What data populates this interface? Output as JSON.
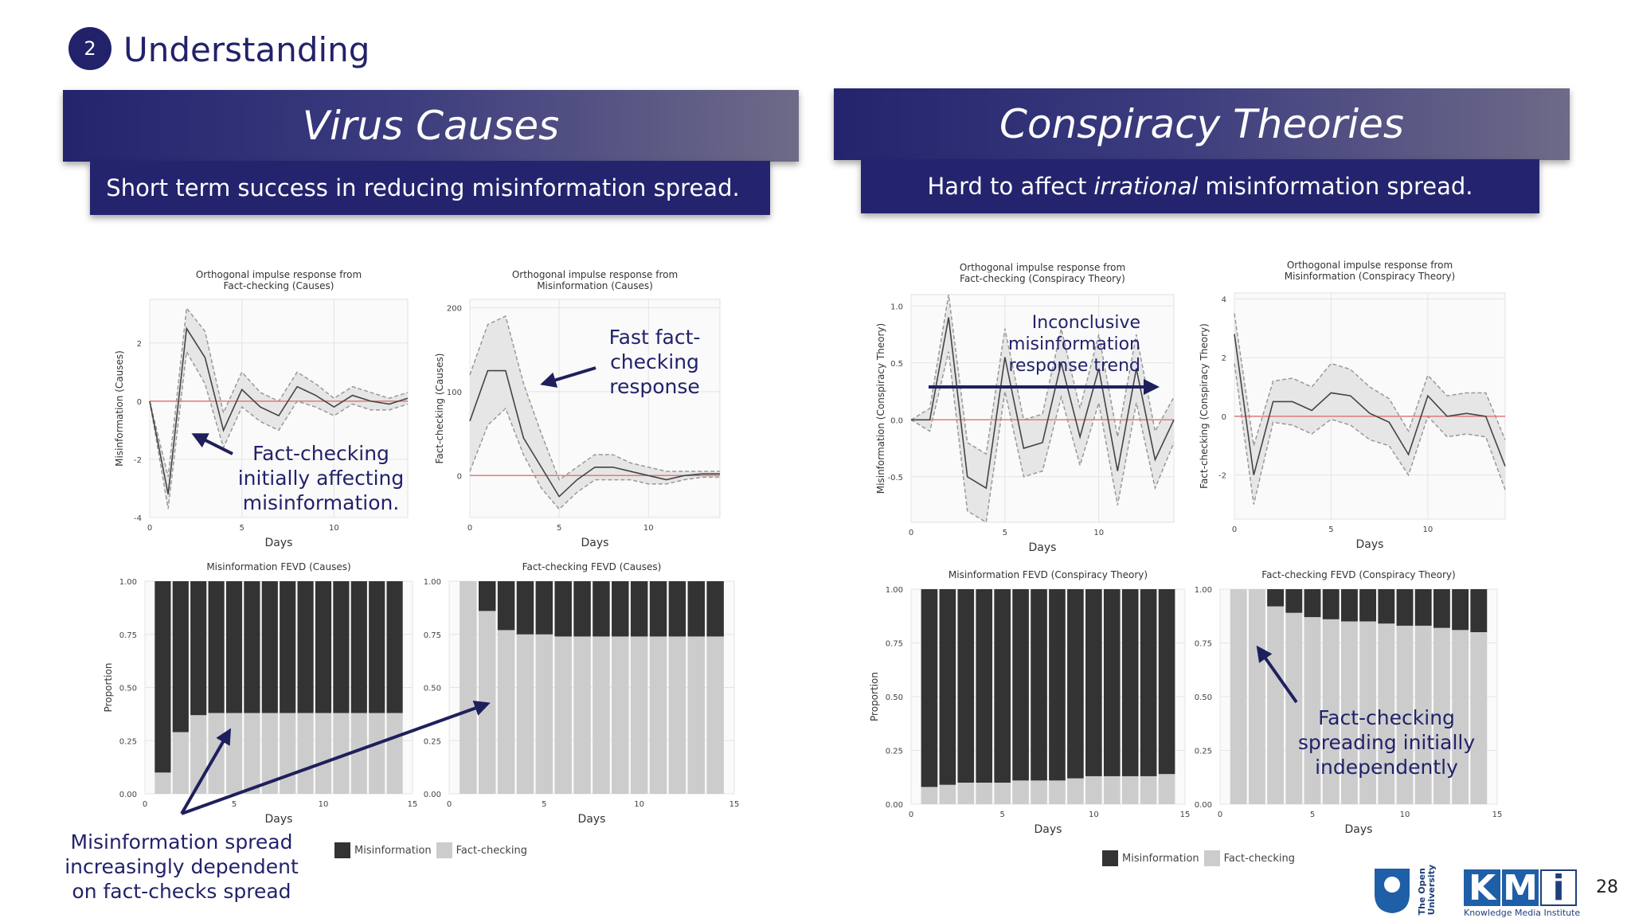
{
  "header": {
    "step": "2",
    "title": "Understanding"
  },
  "panels": [
    {
      "title": "Virus Causes",
      "subtitle": [
        "Short term success in reducing misinformation spread.",
        "",
        ""
      ]
    },
    {
      "title": "Conspiracy Theories",
      "subtitle": [
        "Hard to affect ",
        "irrational",
        " misinformation spread."
      ]
    }
  ],
  "annotations": {
    "a1": "Fact-checking initially affecting misinformation.",
    "a2": "Fast fact-checking response",
    "a3": "Misinformation spread increasingly dependent on fact-checks spread",
    "a4": "Inconclusive misinformation response trend",
    "a5": "Fact-checking spreading initially independently"
  },
  "legend": {
    "misinformation": "Misinformation",
    "factchecking": "Fact-checking"
  },
  "colors": {
    "banner": "#24246e",
    "dark_bar": "#333333",
    "light_bar": "#cccccc",
    "zero_line": "#e07a7a",
    "band": "#e6e6e6"
  },
  "footer": {
    "page_number": "28",
    "ou_text": [
      "The Open",
      "University"
    ],
    "kmi_letters": [
      "K",
      "M",
      "i"
    ],
    "kmi_text": "Knowledge Media Institute"
  },
  "chart_data": [
    {
      "type": "line",
      "title": [
        "Orthogonal impulse response from",
        "Fact-checking  (Causes)"
      ],
      "xlabel": "Days",
      "ylabel": "Misinformation (Causes)",
      "xlim": [
        0,
        14
      ],
      "ylim": [
        -4,
        3.5
      ],
      "xticks": [
        0,
        5,
        10
      ],
      "yticks": [
        -4,
        -2,
        0,
        2
      ],
      "x": [
        0,
        1,
        2,
        3,
        4,
        5,
        6,
        7,
        8,
        9,
        10,
        11,
        12,
        13,
        14
      ],
      "y": [
        0,
        -3.2,
        2.5,
        1.5,
        -1.0,
        0.4,
        -0.2,
        -0.5,
        0.5,
        0.2,
        -0.2,
        0.2,
        0.0,
        -0.1,
        0.1
      ],
      "lower": [
        0,
        -3.7,
        1.7,
        0.6,
        -1.6,
        -0.2,
        -0.7,
        -1.0,
        0.0,
        -0.2,
        -0.5,
        -0.1,
        -0.3,
        -0.3,
        -0.1
      ],
      "upper": [
        0,
        -2.6,
        3.2,
        2.4,
        -0.4,
        1.0,
        0.3,
        0.0,
        1.0,
        0.6,
        0.1,
        0.5,
        0.3,
        0.1,
        0.3
      ]
    },
    {
      "type": "line",
      "title": [
        "Orthogonal impulse response from",
        "Misinformation (Causes)"
      ],
      "xlabel": "Days",
      "ylabel": "Fact-checking (Causes)",
      "xlim": [
        0,
        14
      ],
      "ylim": [
        -50,
        210
      ],
      "xticks": [
        0,
        5,
        10
      ],
      "yticks": [
        0,
        100,
        200
      ],
      "x": [
        0,
        1,
        2,
        3,
        4,
        5,
        6,
        7,
        8,
        9,
        10,
        11,
        12,
        13,
        14
      ],
      "y": [
        65,
        125,
        125,
        45,
        10,
        -25,
        -5,
        10,
        10,
        5,
        0,
        -5,
        0,
        2,
        2
      ],
      "lower": [
        5,
        60,
        80,
        25,
        -15,
        -40,
        -20,
        -5,
        -5,
        -5,
        -10,
        -10,
        -5,
        -2,
        -2
      ],
      "upper": [
        120,
        180,
        190,
        110,
        50,
        -5,
        10,
        25,
        25,
        15,
        10,
        5,
        5,
        5,
        5
      ]
    },
    {
      "type": "line",
      "title": [
        "Orthogonal impulse response from",
        "Fact-checking  (Conspiracy Theory)"
      ],
      "xlabel": "Days",
      "ylabel": "Misinformation (Conspiracy Theory)",
      "xlim": [
        0,
        14
      ],
      "ylim": [
        -0.9,
        1.1
      ],
      "xticks": [
        0,
        5,
        10
      ],
      "yticks": [
        -0.5,
        0.0,
        0.5,
        1.0
      ],
      "x": [
        0,
        1,
        2,
        3,
        4,
        5,
        6,
        7,
        8,
        9,
        10,
        11,
        12,
        13,
        14
      ],
      "y": [
        0,
        0,
        0.9,
        -0.5,
        -0.6,
        0.55,
        -0.25,
        -0.2,
        0.5,
        -0.15,
        0.45,
        -0.45,
        0.45,
        -0.35,
        0.0
      ],
      "lower": [
        0,
        -0.1,
        0.6,
        -0.8,
        -0.9,
        0.25,
        -0.5,
        -0.45,
        0.2,
        -0.4,
        0.15,
        -0.75,
        0.15,
        -0.6,
        -0.2
      ],
      "upper": [
        0,
        0.1,
        1.1,
        -0.2,
        -0.3,
        0.8,
        0.0,
        0.05,
        0.8,
        0.1,
        0.75,
        -0.15,
        0.75,
        -0.1,
        0.2
      ]
    },
    {
      "type": "line",
      "title": [
        "Orthogonal impulse response from",
        "Misinformation (Conspiracy Theory)"
      ],
      "xlabel": "Days",
      "ylabel": "Fact-checking (Conspiracy Theory)",
      "xlim": [
        0,
        14
      ],
      "ylim": [
        -3.5,
        4.2
      ],
      "xticks": [
        0,
        5,
        10
      ],
      "yticks": [
        -2,
        0,
        2,
        4
      ],
      "x": [
        0,
        1,
        2,
        3,
        4,
        5,
        6,
        7,
        8,
        9,
        10,
        11,
        12,
        13,
        14
      ],
      "y": [
        2.8,
        -2.0,
        0.5,
        0.5,
        0.2,
        0.8,
        0.7,
        0.1,
        -0.2,
        -1.3,
        0.7,
        0.0,
        0.1,
        0.0,
        -1.7
      ],
      "lower": [
        1.8,
        -3.0,
        -0.2,
        -0.3,
        -0.6,
        -0.1,
        -0.3,
        -0.8,
        -1.0,
        -2.0,
        0.0,
        -0.7,
        -0.6,
        -0.7,
        -2.5
      ],
      "upper": [
        3.5,
        -1.0,
        1.2,
        1.3,
        1.0,
        1.8,
        1.6,
        1.0,
        0.6,
        -0.5,
        1.4,
        0.7,
        0.8,
        0.8,
        -0.8
      ]
    },
    {
      "type": "bar",
      "stacked": true,
      "title": [
        "Misinformation FEVD (Causes)"
      ],
      "xlabel": "Days",
      "ylabel": "Proportion",
      "xlim": [
        0,
        15
      ],
      "ylim": [
        0,
        1
      ],
      "xticks": [
        0,
        5,
        10,
        15
      ],
      "yticks": [
        0,
        0.25,
        0.5,
        0.75,
        1.0
      ],
      "ytick_labels": [
        "0.00",
        "0.25",
        "0.50",
        "0.75",
        "1.00"
      ],
      "categories": [
        1,
        2,
        3,
        4,
        5,
        6,
        7,
        8,
        9,
        10,
        11,
        12,
        13,
        14
      ],
      "series": [
        {
          "name": "Fact-checking",
          "values": [
            0.1,
            0.29,
            0.37,
            0.38,
            0.38,
            0.38,
            0.38,
            0.38,
            0.38,
            0.38,
            0.38,
            0.38,
            0.38,
            0.38
          ]
        },
        {
          "name": "Misinformation",
          "values": [
            0.9,
            0.71,
            0.63,
            0.62,
            0.62,
            0.62,
            0.62,
            0.62,
            0.62,
            0.62,
            0.62,
            0.62,
            0.62,
            0.62
          ]
        }
      ]
    },
    {
      "type": "bar",
      "stacked": true,
      "title": [
        "Fact-checking FEVD (Causes)"
      ],
      "xlabel": "Days",
      "ylabel": "",
      "xlim": [
        0,
        15
      ],
      "ylim": [
        0,
        1
      ],
      "xticks": [
        0,
        5,
        10,
        15
      ],
      "yticks": [
        0,
        0.25,
        0.5,
        0.75,
        1.0
      ],
      "ytick_labels": [
        "0.00",
        "0.25",
        "0.50",
        "0.75",
        "1.00"
      ],
      "categories": [
        1,
        2,
        3,
        4,
        5,
        6,
        7,
        8,
        9,
        10,
        11,
        12,
        13,
        14
      ],
      "series": [
        {
          "name": "Fact-checking",
          "values": [
            1.0,
            0.86,
            0.77,
            0.75,
            0.75,
            0.74,
            0.74,
            0.74,
            0.74,
            0.74,
            0.74,
            0.74,
            0.74,
            0.74
          ]
        },
        {
          "name": "Misinformation",
          "values": [
            0.0,
            0.14,
            0.23,
            0.25,
            0.25,
            0.26,
            0.26,
            0.26,
            0.26,
            0.26,
            0.26,
            0.26,
            0.26,
            0.26
          ]
        }
      ]
    },
    {
      "type": "bar",
      "stacked": true,
      "title": [
        "Misinformation FEVD (Conspiracy Theory)"
      ],
      "xlabel": "Days",
      "ylabel": "Proportion",
      "xlim": [
        0,
        15
      ],
      "ylim": [
        0,
        1
      ],
      "xticks": [
        0,
        5,
        10,
        15
      ],
      "yticks": [
        0,
        0.25,
        0.5,
        0.75,
        1.0
      ],
      "ytick_labels": [
        "0.00",
        "0.25",
        "0.50",
        "0.75",
        "1.00"
      ],
      "categories": [
        1,
        2,
        3,
        4,
        5,
        6,
        7,
        8,
        9,
        10,
        11,
        12,
        13,
        14
      ],
      "series": [
        {
          "name": "Fact-checking",
          "values": [
            0.08,
            0.09,
            0.1,
            0.1,
            0.1,
            0.11,
            0.11,
            0.11,
            0.12,
            0.13,
            0.13,
            0.13,
            0.13,
            0.14
          ]
        },
        {
          "name": "Misinformation",
          "values": [
            0.92,
            0.91,
            0.9,
            0.9,
            0.9,
            0.89,
            0.89,
            0.89,
            0.88,
            0.87,
            0.87,
            0.87,
            0.87,
            0.86
          ]
        }
      ]
    },
    {
      "type": "bar",
      "stacked": true,
      "title": [
        "Fact-checking FEVD (Conspiracy Theory)"
      ],
      "xlabel": "Days",
      "ylabel": "",
      "xlim": [
        0,
        15
      ],
      "ylim": [
        0,
        1
      ],
      "xticks": [
        0,
        5,
        10,
        15
      ],
      "yticks": [
        0,
        0.25,
        0.5,
        0.75,
        1.0
      ],
      "ytick_labels": [
        "0.00",
        "0.25",
        "0.50",
        "0.75",
        "1.00"
      ],
      "categories": [
        1,
        2,
        3,
        4,
        5,
        6,
        7,
        8,
        9,
        10,
        11,
        12,
        13,
        14
      ],
      "series": [
        {
          "name": "Fact-checking",
          "values": [
            1.0,
            1.0,
            0.92,
            0.89,
            0.87,
            0.86,
            0.85,
            0.85,
            0.84,
            0.83,
            0.83,
            0.82,
            0.81,
            0.8
          ]
        },
        {
          "name": "Misinformation",
          "values": [
            0.0,
            0.0,
            0.08,
            0.11,
            0.13,
            0.14,
            0.15,
            0.15,
            0.16,
            0.17,
            0.17,
            0.18,
            0.19,
            0.2
          ]
        }
      ]
    }
  ]
}
